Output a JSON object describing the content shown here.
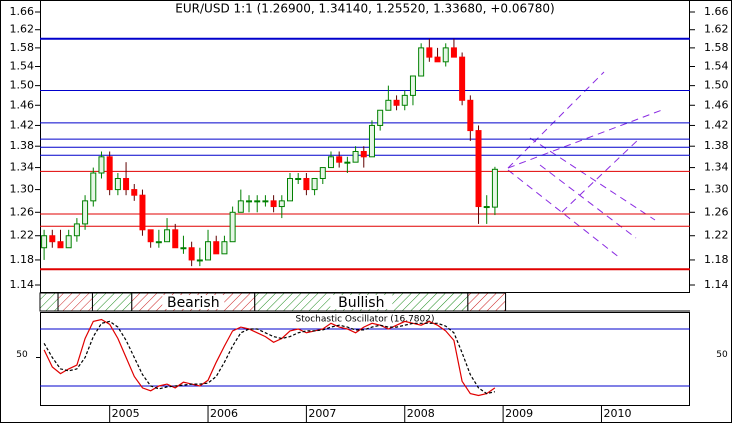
{
  "chart_data": [
    {
      "type": "candlestick",
      "title": "EUR/USD 1:1 (1.26900, 1.34140, 1.25520, 1.33680, +0.06780)",
      "log": true,
      "ylim": [
        1.14,
        1.66
      ],
      "yticks": [
        1.14,
        1.18,
        1.22,
        1.26,
        {
          "value": 1.3,
          "label": "1.30"
        },
        1.34,
        1.38,
        1.42,
        1.46,
        {
          "value": 1.5,
          "label": "1.50"
        },
        1.54,
        1.58,
        1.62,
        1.66
      ],
      "xlim": [
        -0.5,
        78.8
      ],
      "up_color": "#008000",
      "down_color": "#ff0000",
      "ohlc": [
        [
          1.2,
          1.23,
          1.18,
          1.22
        ],
        [
          1.22,
          1.23,
          1.2,
          1.21
        ],
        [
          1.21,
          1.23,
          1.2,
          1.2
        ],
        [
          1.2,
          1.23,
          1.2,
          1.22
        ],
        [
          1.22,
          1.25,
          1.21,
          1.24
        ],
        [
          1.24,
          1.29,
          1.23,
          1.28
        ],
        [
          1.28,
          1.34,
          1.27,
          1.33
        ],
        [
          1.33,
          1.37,
          1.32,
          1.36
        ],
        [
          1.36,
          1.37,
          1.29,
          1.3
        ],
        [
          1.3,
          1.33,
          1.29,
          1.32
        ],
        [
          1.32,
          1.35,
          1.29,
          1.3
        ],
        [
          1.3,
          1.31,
          1.28,
          1.29
        ],
        [
          1.29,
          1.3,
          1.22,
          1.23
        ],
        [
          1.23,
          1.23,
          1.2,
          1.21
        ],
        [
          1.21,
          1.23,
          1.2,
          1.21
        ],
        [
          1.21,
          1.25,
          1.21,
          1.23
        ],
        [
          1.23,
          1.24,
          1.2,
          1.2
        ],
        [
          1.2,
          1.22,
          1.19,
          1.2
        ],
        [
          1.2,
          1.21,
          1.17,
          1.18
        ],
        [
          1.18,
          1.2,
          1.17,
          1.18
        ],
        [
          1.18,
          1.23,
          1.18,
          1.21
        ],
        [
          1.21,
          1.22,
          1.19,
          1.19
        ],
        [
          1.19,
          1.22,
          1.19,
          1.21
        ],
        [
          1.21,
          1.27,
          1.21,
          1.26
        ],
        [
          1.26,
          1.3,
          1.26,
          1.28
        ],
        [
          1.28,
          1.29,
          1.26,
          1.28
        ],
        [
          1.28,
          1.29,
          1.26,
          1.28
        ],
        [
          1.28,
          1.29,
          1.27,
          1.28
        ],
        [
          1.28,
          1.29,
          1.26,
          1.27
        ],
        [
          1.27,
          1.29,
          1.25,
          1.28
        ],
        [
          1.28,
          1.33,
          1.28,
          1.32
        ],
        [
          1.32,
          1.33,
          1.31,
          1.32
        ],
        [
          1.32,
          1.33,
          1.29,
          1.3
        ],
        [
          1.3,
          1.32,
          1.29,
          1.32
        ],
        [
          1.32,
          1.34,
          1.31,
          1.34
        ],
        [
          1.34,
          1.37,
          1.34,
          1.36
        ],
        [
          1.36,
          1.37,
          1.34,
          1.35
        ],
        [
          1.35,
          1.36,
          1.33,
          1.35
        ],
        [
          1.35,
          1.38,
          1.35,
          1.37
        ],
        [
          1.37,
          1.38,
          1.34,
          1.36
        ],
        [
          1.36,
          1.43,
          1.36,
          1.42
        ],
        [
          1.42,
          1.45,
          1.41,
          1.45
        ],
        [
          1.45,
          1.5,
          1.45,
          1.47
        ],
        [
          1.47,
          1.48,
          1.45,
          1.46
        ],
        [
          1.46,
          1.49,
          1.45,
          1.48
        ],
        [
          1.48,
          1.52,
          1.46,
          1.52
        ],
        [
          1.52,
          1.59,
          1.52,
          1.58
        ],
        [
          1.58,
          1.6,
          1.55,
          1.56
        ],
        [
          1.56,
          1.58,
          1.55,
          1.55
        ],
        [
          1.55,
          1.59,
          1.54,
          1.58
        ],
        [
          1.58,
          1.6,
          1.56,
          1.56
        ],
        [
          1.56,
          1.57,
          1.46,
          1.47
        ],
        [
          1.47,
          1.48,
          1.39,
          1.41
        ],
        [
          1.41,
          1.42,
          1.24,
          1.27
        ],
        [
          1.27,
          1.29,
          1.24,
          1.27
        ],
        [
          1.269,
          1.3414,
          1.2552,
          1.3368
        ]
      ],
      "hlines": [
        {
          "value": 1.6,
          "color": "#0000cc",
          "width": 2
        },
        {
          "value": 1.49,
          "color": "#0000cc",
          "width": 1
        },
        {
          "value": 1.425,
          "color": "#0000cc",
          "width": 1
        },
        {
          "value": 1.3935,
          "color": "#0000cc",
          "width": 1
        },
        {
          "value": 1.378,
          "color": "#0000cc",
          "width": 1
        },
        {
          "value": 1.363,
          "color": "#0000cc",
          "width": 1
        },
        {
          "value": 1.333,
          "color": "#e00000",
          "width": 1
        },
        {
          "value": 1.257,
          "color": "#e00000",
          "width": 1
        },
        {
          "value": 1.236,
          "color": "#e00000",
          "width": 1
        },
        {
          "value": 1.165,
          "color": "#e00000",
          "width": 2
        }
      ],
      "regions": [
        {
          "start": -0.5,
          "end": 1.7,
          "color": "green"
        },
        {
          "start": 1.7,
          "end": 5.9,
          "color": "red"
        },
        {
          "start": 5.9,
          "end": 10.7,
          "color": "green"
        },
        {
          "start": 10.7,
          "end": 25.7,
          "color": "red",
          "label": "Bearish"
        },
        {
          "start": 25.7,
          "end": 51.7,
          "color": "green",
          "label": "Bullish"
        },
        {
          "start": 51.7,
          "end": 56.3,
          "color": "red"
        }
      ]
    },
    {
      "type": "line",
      "title": "Stochastic Oscillator (16.7802)",
      "ylim": [
        0,
        100
      ],
      "yticks": [
        50
      ],
      "xlim": [
        -0.5,
        78.8
      ],
      "xticks": [
        {
          "value": 8,
          "label": "2005"
        },
        {
          "value": 20,
          "label": "2006"
        },
        {
          "value": 32,
          "label": "2007"
        },
        {
          "value": 44,
          "label": "2008"
        },
        {
          "value": 56,
          "label": "2009"
        },
        {
          "value": 68,
          "label": "2010"
        }
      ],
      "hlines": [
        {
          "value": 80,
          "color": "#0000cc",
          "width": 1
        },
        {
          "value": 20,
          "color": "#0000cc",
          "width": 1
        }
      ],
      "series": [
        {
          "color": "#e00000",
          "dashed": false,
          "values": [
            58,
            40,
            33,
            38,
            42,
            70,
            88,
            90,
            85,
            70,
            50,
            30,
            18,
            15,
            20,
            22,
            18,
            24,
            22,
            20,
            26,
            45,
            62,
            78,
            82,
            80,
            76,
            72,
            66,
            70,
            78,
            80,
            76,
            78,
            80,
            86,
            82,
            80,
            76,
            82,
            86,
            84,
            80,
            84,
            88,
            86,
            84,
            88,
            84,
            78,
            68,
            25,
            12,
            10,
            12,
            18
          ]
        },
        {
          "color": "#000000",
          "dashed": true,
          "values": [
            65,
            50,
            38,
            36,
            38,
            50,
            72,
            86,
            88,
            82,
            68,
            50,
            32,
            20,
            17,
            19,
            20,
            21,
            22,
            22,
            23,
            30,
            45,
            62,
            76,
            80,
            80,
            76,
            72,
            70,
            72,
            76,
            78,
            78,
            79,
            82,
            84,
            82,
            79,
            79,
            82,
            84,
            82,
            82,
            84,
            86,
            86,
            86,
            86,
            83,
            76,
            55,
            32,
            18,
            12,
            14
          ]
        }
      ]
    }
  ]
}
